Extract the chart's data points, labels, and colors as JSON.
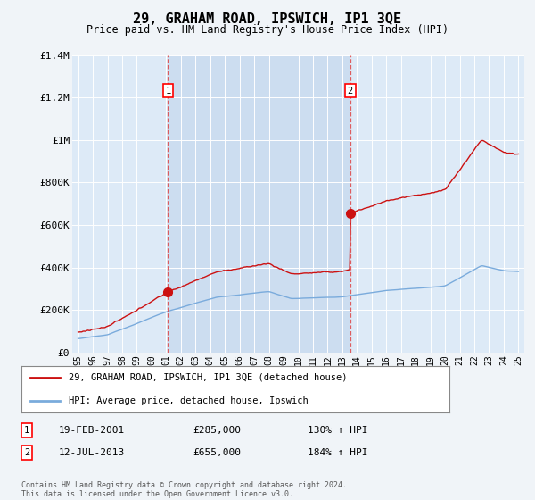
{
  "title": "29, GRAHAM ROAD, IPSWICH, IP1 3QE",
  "subtitle": "Price paid vs. HM Land Registry's House Price Index (HPI)",
  "background_color": "#f0f4f8",
  "plot_bg_color": "#ddeaf7",
  "shaded_bg_color": "#ccddf0",
  "ylim": [
    0,
    1400000
  ],
  "yticks": [
    0,
    200000,
    400000,
    600000,
    800000,
    1000000,
    1200000,
    1400000
  ],
  "ytick_labels": [
    "£0",
    "£200K",
    "£400K",
    "£600K",
    "£800K",
    "£1M",
    "£1.2M",
    "£1.4M"
  ],
  "hpi_color": "#7aabdc",
  "price_color": "#cc1111",
  "dot_color": "#cc1111",
  "vline_color": "#dd4444",
  "annotation1": {
    "label": "1",
    "date": "19-FEB-2001",
    "price": 285000,
    "hpi_pct": "130% ↑ HPI",
    "year": 2001.13
  },
  "annotation2": {
    "label": "2",
    "date": "12-JUL-2013",
    "price": 655000,
    "hpi_pct": "184% ↑ HPI",
    "year": 2013.54
  },
  "legend_entry1": "29, GRAHAM ROAD, IPSWICH, IP1 3QE (detached house)",
  "legend_entry2": "HPI: Average price, detached house, Ipswich",
  "footer": "Contains HM Land Registry data © Crown copyright and database right 2024.\nThis data is licensed under the Open Government Licence v3.0.",
  "xlim_left": 1994.6,
  "xlim_right": 2025.4
}
